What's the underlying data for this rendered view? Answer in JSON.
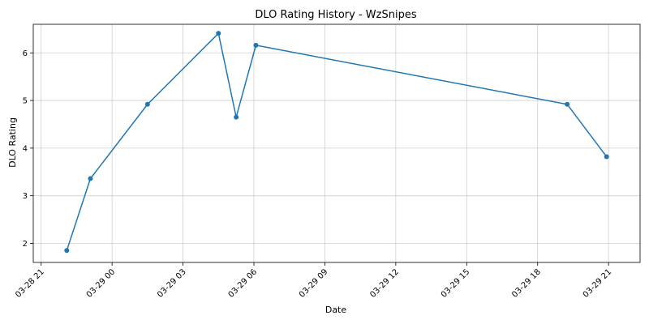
{
  "chart_data": {
    "type": "line",
    "title": "DLO Rating History - WzSnipes",
    "xlabel": "Date",
    "ylabel": "DLO Rating",
    "x_is_datetime": true,
    "xlim": [
      "2025-03-28T20:40",
      "2025-03-29T22:20"
    ],
    "ylim": [
      1.6,
      6.6
    ],
    "x_ticks": [
      {
        "value": "2025-03-28T21:00",
        "label": "03-28 21"
      },
      {
        "value": "2025-03-29T00:00",
        "label": "03-29 00"
      },
      {
        "value": "2025-03-29T03:00",
        "label": "03-29 03"
      },
      {
        "value": "2025-03-29T06:00",
        "label": "03-29 06"
      },
      {
        "value": "2025-03-29T09:00",
        "label": "03-29 09"
      },
      {
        "value": "2025-03-29T12:00",
        "label": "03-29 12"
      },
      {
        "value": "2025-03-29T15:00",
        "label": "03-29 15"
      },
      {
        "value": "2025-03-29T18:00",
        "label": "03-29 18"
      },
      {
        "value": "2025-03-29T21:00",
        "label": "03-29 21"
      }
    ],
    "y_ticks": [
      2,
      3,
      4,
      5,
      6
    ],
    "grid": true,
    "series": [
      {
        "color": "#1f77b4",
        "marker": "circle",
        "points": [
          {
            "x": "2025-03-28T22:05",
            "y": 1.85
          },
          {
            "x": "2025-03-28T23:05",
            "y": 3.36
          },
          {
            "x": "2025-03-29T01:30",
            "y": 4.92
          },
          {
            "x": "2025-03-29T04:30",
            "y": 6.41
          },
          {
            "x": "2025-03-29T05:15",
            "y": 4.65
          },
          {
            "x": "2025-03-29T06:05",
            "y": 6.16
          },
          {
            "x": "2025-03-29T19:15",
            "y": 4.92
          },
          {
            "x": "2025-03-29T20:55",
            "y": 3.82
          }
        ]
      }
    ]
  }
}
